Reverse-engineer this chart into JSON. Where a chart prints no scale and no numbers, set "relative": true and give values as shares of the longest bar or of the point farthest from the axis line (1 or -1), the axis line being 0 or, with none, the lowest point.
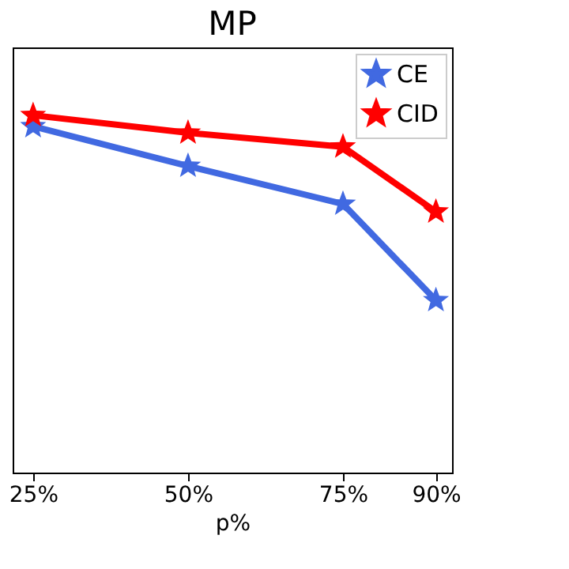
{
  "chart_data": {
    "type": "line",
    "title": "MP",
    "xlabel": "p%",
    "relative": true,
    "x": [
      25,
      50,
      75,
      90
    ],
    "xlim": [
      21.7,
      92.6
    ],
    "xticks": [
      {
        "value": 25,
        "label": "25%"
      },
      {
        "value": 50,
        "label": "50%"
      },
      {
        "value": 75,
        "label": "75%"
      },
      {
        "value": 90,
        "label": "90%"
      }
    ],
    "series": [
      {
        "name": "CE",
        "color": "#4169e1",
        "values": [
          0.969,
          0.858,
          0.752,
          0.482
        ]
      },
      {
        "name": "CID",
        "color": "#ff0000",
        "values": [
          1,
          0.951,
          0.912,
          0.73
        ]
      }
    ],
    "legend": "top right",
    "marker": "star",
    "line_style": "solid",
    "grid": false,
    "tick_labels": "x"
  }
}
